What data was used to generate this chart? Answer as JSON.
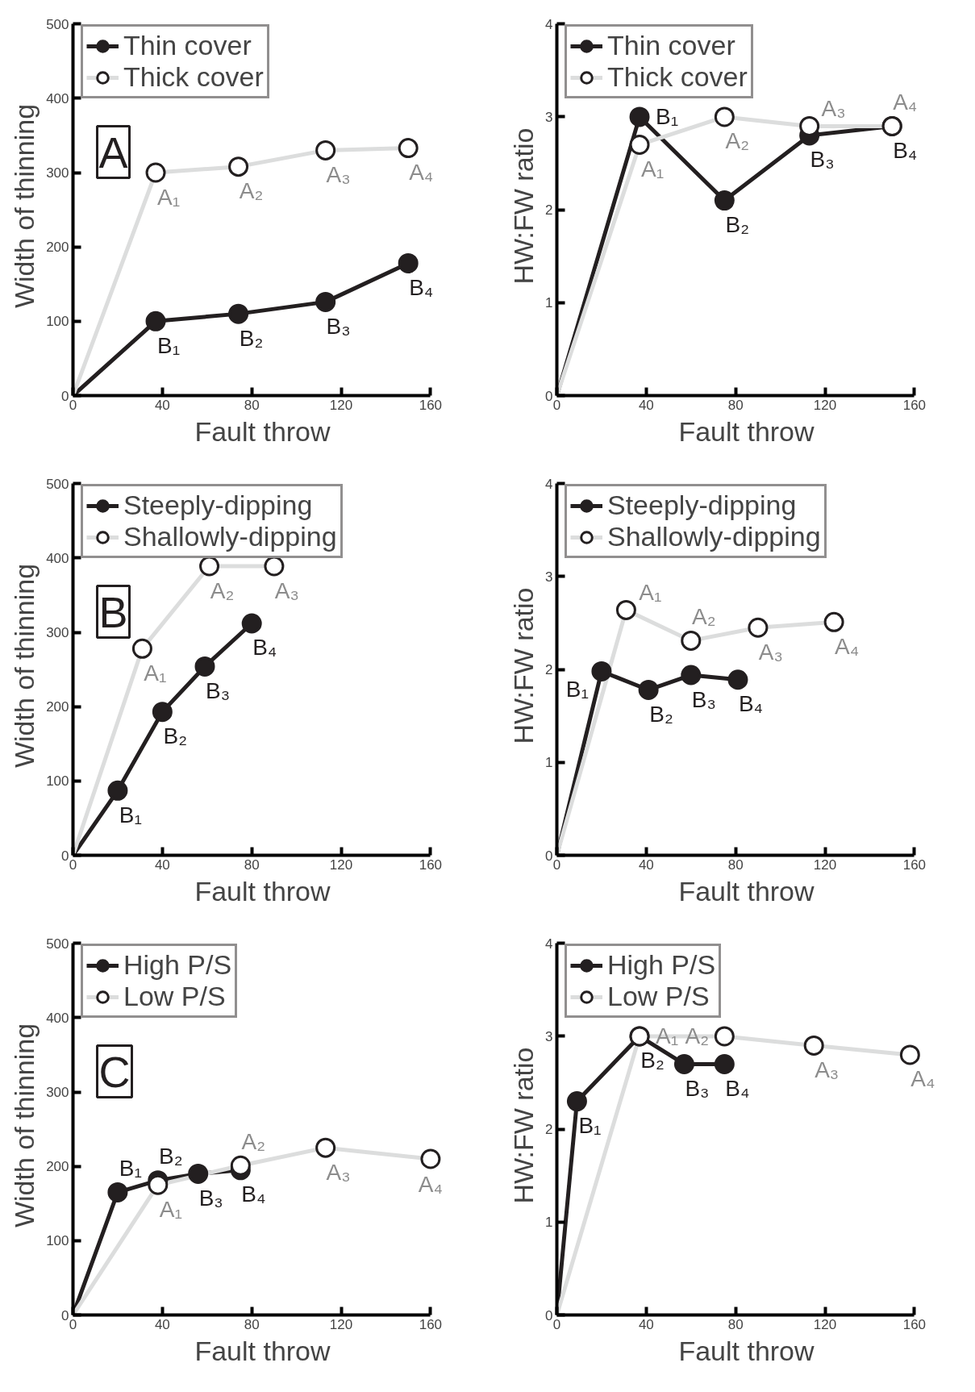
{
  "chart_data": [
    {
      "type": "line",
      "xlabel": "Fault throw",
      "ylabel": "Width of thinning",
      "xlim": [
        0,
        160
      ],
      "ylim": [
        0,
        500
      ],
      "xticks": [
        0,
        40,
        80,
        120,
        160
      ],
      "yticks": [
        0,
        100,
        200,
        300,
        400,
        500
      ],
      "legend": "top left",
      "marker": "circle",
      "grid": false,
      "annotations": [
        "A"
      ],
      "series": [
        {
          "name": "Thin cover",
          "color": "#231f20",
          "x": [
            0,
            37,
            74,
            113,
            150
          ],
          "values": [
            0,
            100,
            110,
            126,
            178
          ],
          "value_labels": [
            null,
            "B₁",
            "B₂",
            "B₃",
            "B₄"
          ]
        },
        {
          "name": "Thick cover",
          "color": "#dcdddd",
          "x": [
            0,
            37,
            74,
            113,
            150
          ],
          "values": [
            0,
            300,
            308,
            330,
            333
          ],
          "value_labels": [
            null,
            "A₁",
            "A₂",
            "A₃",
            "A₄"
          ]
        }
      ]
    },
    {
      "type": "line",
      "xlabel": "Fault throw",
      "ylabel": "HW:FW ratio",
      "xlim": [
        0,
        160
      ],
      "ylim": [
        0,
        4
      ],
      "xticks": [
        0,
        40,
        80,
        120,
        160
      ],
      "yticks": [
        0,
        1,
        2,
        3,
        4
      ],
      "legend": "top left",
      "marker": "circle",
      "grid": false,
      "series": [
        {
          "name": "Thin cover",
          "color": "#231f20",
          "x": [
            0,
            37,
            75,
            113,
            150
          ],
          "values": [
            0,
            3.0,
            2.1,
            2.8,
            2.9
          ],
          "value_labels": [
            null,
            "B₁",
            "B₂",
            "B₃",
            "B₄"
          ]
        },
        {
          "name": "Thick cover",
          "color": "#dcdddd",
          "x": [
            0,
            37,
            75,
            113,
            150
          ],
          "values": [
            0,
            2.7,
            3.0,
            2.9,
            2.9
          ],
          "value_labels": [
            null,
            "A₁",
            "A₂",
            "A₃",
            "A₄"
          ]
        }
      ]
    },
    {
      "type": "line",
      "xlabel": "Fault throw",
      "ylabel": "Width of thinning",
      "xlim": [
        0,
        160
      ],
      "ylim": [
        0,
        500
      ],
      "xticks": [
        0,
        40,
        80,
        120,
        160
      ],
      "yticks": [
        0,
        100,
        200,
        300,
        400,
        500
      ],
      "legend": "top left",
      "marker": "circle",
      "grid": false,
      "annotations": [
        "B"
      ],
      "series": [
        {
          "name": "Steeply-dipping",
          "color": "#231f20",
          "x": [
            0,
            20,
            40,
            59,
            80
          ],
          "values": [
            0,
            87,
            193,
            254,
            312
          ],
          "value_labels": [
            null,
            "B₁",
            "B₂",
            "B₃",
            "B₄"
          ]
        },
        {
          "name": "Shallowly-dipping",
          "color": "#dcdddd",
          "x": [
            0,
            31,
            61,
            90
          ],
          "values": [
            0,
            278,
            389,
            389
          ],
          "value_labels": [
            null,
            "A₁",
            "A₂",
            "A₃"
          ]
        }
      ]
    },
    {
      "type": "line",
      "xlabel": "Fault throw",
      "ylabel": "HW:FW ratio",
      "xlim": [
        0,
        160
      ],
      "ylim": [
        0,
        4
      ],
      "xticks": [
        0,
        40,
        80,
        120,
        160
      ],
      "yticks": [
        0,
        1,
        2,
        3,
        4
      ],
      "legend": "top left",
      "marker": "circle",
      "grid": false,
      "series": [
        {
          "name": "Steeply-dipping",
          "color": "#231f20",
          "x": [
            0,
            20,
            41,
            60,
            81
          ],
          "values": [
            0,
            1.98,
            1.78,
            1.94,
            1.89
          ],
          "value_labels": [
            null,
            "B₁",
            "B₂",
            "B₃",
            "B₄"
          ]
        },
        {
          "name": "Shallowly-dipping",
          "color": "#dcdddd",
          "x": [
            0,
            31,
            60,
            90,
            124
          ],
          "values": [
            0,
            2.64,
            2.31,
            2.45,
            2.51
          ],
          "value_labels": [
            null,
            "A₁",
            "A₂",
            "A₃",
            "A₄"
          ]
        }
      ]
    },
    {
      "type": "line",
      "xlabel": "Fault throw",
      "ylabel": "Width of thinning",
      "xlim": [
        0,
        160
      ],
      "ylim": [
        0,
        500
      ],
      "xticks": [
        0,
        40,
        80,
        120,
        160
      ],
      "yticks": [
        0,
        100,
        200,
        300,
        400,
        500
      ],
      "legend": "top left",
      "marker": "circle",
      "grid": false,
      "annotations": [
        "C"
      ],
      "series": [
        {
          "name": "High P/S",
          "color": "#231f20",
          "x": [
            0,
            20,
            38,
            56,
            75
          ],
          "values": [
            0,
            165,
            181,
            190,
            195
          ],
          "value_labels": [
            null,
            "B₁",
            "B₂",
            "B₃",
            "B₄"
          ]
        },
        {
          "name": "Low P/S",
          "color": "#dcdddd",
          "x": [
            0,
            38,
            75,
            113,
            160
          ],
          "values": [
            0,
            175,
            201,
            225,
            210
          ],
          "value_labels": [
            null,
            "A₁",
            "A₂",
            "A₃",
            "A₄"
          ]
        }
      ]
    },
    {
      "type": "line",
      "xlabel": "Fault throw",
      "ylabel": "HW:FW ratio",
      "xlim": [
        0,
        160
      ],
      "ylim": [
        0,
        4
      ],
      "xticks": [
        0,
        40,
        80,
        120,
        160
      ],
      "yticks": [
        0,
        1,
        2,
        3,
        4
      ],
      "legend": "top left",
      "marker": "circle",
      "grid": false,
      "series": [
        {
          "name": "High P/S",
          "color": "#231f20",
          "x": [
            0,
            9,
            37,
            57,
            75
          ],
          "values": [
            0,
            2.3,
            3.0,
            2.7,
            2.7
          ],
          "value_labels": [
            null,
            "B₁",
            "B₂",
            "B₃",
            "B₄"
          ]
        },
        {
          "name": "Low P/S",
          "color": "#dcdddd",
          "x": [
            0,
            37,
            75,
            115,
            158
          ],
          "values": [
            0,
            3.0,
            3.0,
            2.9,
            2.8
          ],
          "value_labels": [
            null,
            "A₁",
            "A₂",
            "A₃",
            "A₄"
          ]
        }
      ]
    }
  ]
}
